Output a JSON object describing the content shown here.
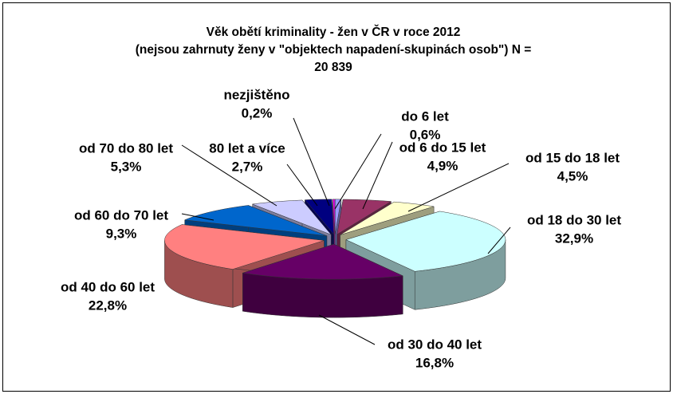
{
  "chart_data": {
    "type": "pie3d",
    "title_lines": [
      "Věk obětí kriminality - žen v ČR v roce 2012",
      "(nejsou zahrnuty ženy v \"objektech napadení-skupinách osob\") N =",
      "20 839"
    ],
    "categories": [
      "do 6 let",
      "od 6 do 15 let",
      "od 15 do 18 let",
      "od 18 do 30 let",
      "od 30 do 40 let",
      "od 40 do 60 let",
      "od 60 do 70 let",
      "od 70 do 80 let",
      "80 let a více",
      "nezjištěno"
    ],
    "values": [
      0.6,
      4.9,
      4.5,
      32.9,
      16.8,
      22.8,
      9.3,
      5.3,
      2.7,
      0.2
    ],
    "value_labels": [
      "0,6%",
      "4,9%",
      "4,5%",
      "32,9%",
      "16,8%",
      "22,8%",
      "9,3%",
      "5,3%",
      "2,7%",
      "0,2%"
    ],
    "colors": [
      "#9999ff",
      "#993366",
      "#ffffcc",
      "#ccffff",
      "#660066",
      "#ff8080",
      "#0066cc",
      "#ccccff",
      "#000080",
      "#ff00ff"
    ]
  }
}
